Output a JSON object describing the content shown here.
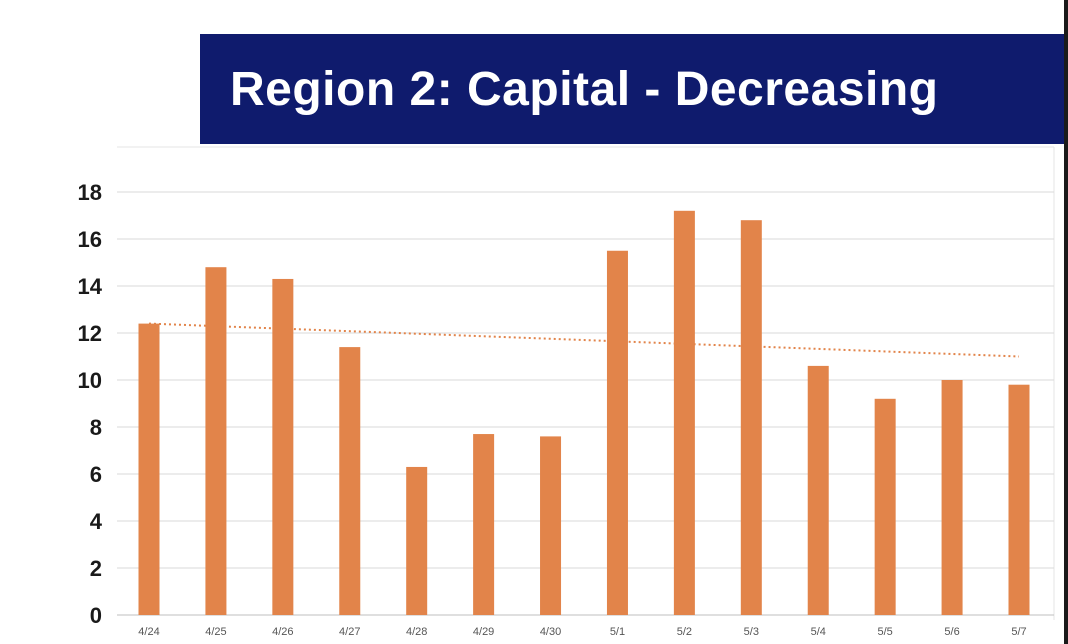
{
  "title": "Region 2: Capital - Decreasing",
  "colors": {
    "banner": "#0f1b6d",
    "bar": "#e2844a",
    "trend": "#e2844a",
    "grid": "#d9d9d9"
  },
  "chart_data": {
    "type": "bar",
    "title": "Region 2: Capital - Decreasing",
    "xlabel": "",
    "ylabel": "",
    "ylim": [
      0,
      18
    ],
    "yticks": [
      0,
      2,
      4,
      6,
      8,
      10,
      12,
      14,
      16,
      18
    ],
    "grid": true,
    "categories": [
      "4/24",
      "4/25",
      "4/26",
      "4/27",
      "4/28",
      "4/29",
      "4/30",
      "5/1",
      "5/2",
      "5/3",
      "5/4",
      "5/5",
      "5/6",
      "5/7"
    ],
    "series": [
      {
        "name": "Region 2: Capital",
        "values": [
          12.4,
          14.8,
          14.3,
          11.4,
          6.3,
          7.7,
          7.6,
          15.5,
          17.2,
          16.8,
          10.6,
          9.2,
          10.0,
          9.8
        ]
      }
    ],
    "trendline": {
      "type": "linear",
      "start": 12.4,
      "end": 11.0
    }
  }
}
